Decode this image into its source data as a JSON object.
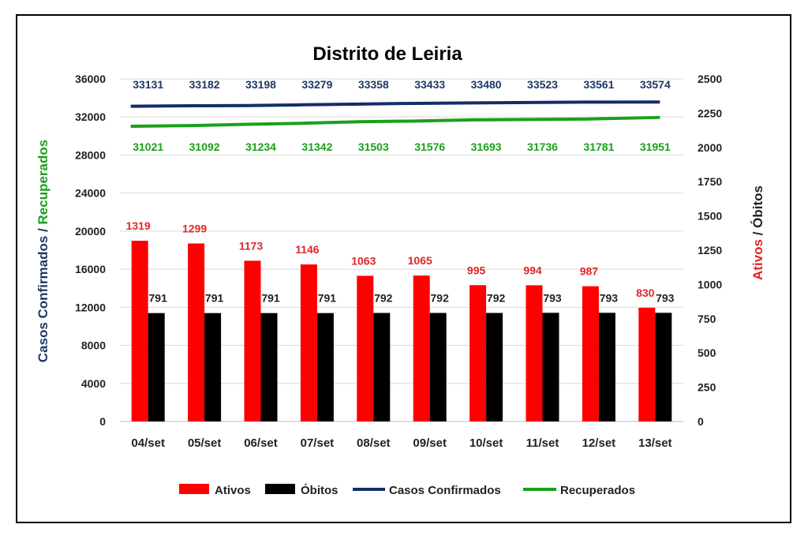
{
  "chart_data": {
    "type": "bar",
    "title": "Distrito de Leiria",
    "categories": [
      "04/set",
      "05/set",
      "06/set",
      "07/set",
      "08/set",
      "09/set",
      "10/set",
      "11/set",
      "12/set",
      "13/set"
    ],
    "left_axis": {
      "title_part1": "Casos Confirmados",
      "separator": " / ",
      "title_part2": "Recuperados",
      "ylim": [
        0,
        36000
      ],
      "ticks": [
        "0",
        "4000",
        "8000",
        "12000",
        "16000",
        "20000",
        "24000",
        "28000",
        "32000",
        "36000"
      ]
    },
    "right_axis": {
      "title_part1": "Ativos",
      "separator": " / ",
      "title_part2": "Óbitos",
      "ylim": [
        0,
        2500
      ],
      "ticks": [
        "0",
        "250",
        "500",
        "750",
        "1000",
        "1250",
        "1500",
        "1750",
        "2000",
        "2250",
        "2500"
      ]
    },
    "series": [
      {
        "name": "Ativos",
        "kind": "bar",
        "axis": "right",
        "color": "#ff0000",
        "label_color": "#e0262b",
        "values": [
          1319,
          1299,
          1173,
          1146,
          1063,
          1065,
          995,
          994,
          987,
          830
        ]
      },
      {
        "name": "Óbitos",
        "kind": "bar",
        "axis": "right",
        "color": "#000000",
        "label_color": "#222222",
        "values": [
          791,
          791,
          791,
          791,
          792,
          792,
          792,
          793,
          793,
          793
        ]
      },
      {
        "name": "Casos Confirmados",
        "kind": "line",
        "axis": "left",
        "color": "#142d69",
        "label_color": "#1f3864",
        "values": [
          33131,
          33182,
          33198,
          33279,
          33358,
          33433,
          33480,
          33523,
          33561,
          33574
        ]
      },
      {
        "name": "Recuperados",
        "kind": "line",
        "axis": "left",
        "color": "#1aa01a",
        "label_color": "#1aa01a",
        "values": [
          31021,
          31092,
          31234,
          31342,
          31503,
          31576,
          31693,
          31736,
          31781,
          31951
        ]
      }
    ],
    "grid": true,
    "legend_position": "bottom"
  }
}
